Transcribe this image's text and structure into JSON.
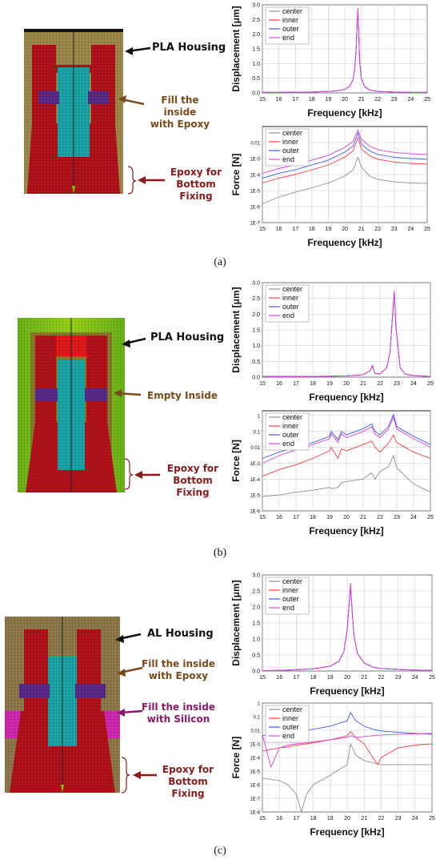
{
  "colors": {
    "center": "#909090",
    "inner": "#ff3b3b",
    "outer": "#3b5bff",
    "end": "#e040e0",
    "pla_arrow": "#111111",
    "epoxy_fill_text": "#7a4a1a",
    "silicon_text": "#8a1a6a",
    "bottom_text": "#8b1a1a",
    "model_red": "#b3121a",
    "model_cyan": "#1aa6a6",
    "model_purple": "#5a2a8a",
    "pla_yellow": "#a48a3a",
    "pla_green": "#7ac81a"
  },
  "panels": [
    {
      "label": "(a)",
      "housing_label": "PLA Housing",
      "fill_label": [
        "Fill the inside",
        "with Epoxy"
      ],
      "bottom_label": [
        "Epoxy for",
        "Bottom Fixing"
      ]
    },
    {
      "label": "(b)",
      "housing_label": "PLA Housing",
      "fill_label": [
        "Empty Inside"
      ],
      "bottom_label": [
        "Epoxy for",
        "Bottom Fixing"
      ]
    },
    {
      "label": "(c)",
      "housing_label": "AL Housing",
      "fill_label": [
        "Fill the inside",
        "with Epoxy"
      ],
      "silicon_label": [
        "Fill the inside",
        "with Silicon"
      ],
      "bottom_label": [
        "Epoxy for",
        "Bottom Fixing"
      ]
    }
  ],
  "chart_data": [
    {
      "type": "line",
      "panel": "a",
      "scale": "linear",
      "xlabel": "Frequency [kHz]",
      "ylabel": "Displacement [μm]",
      "xlim": [
        15,
        25
      ],
      "ylim": [
        0,
        3.0
      ],
      "xticks": [
        "15",
        "16",
        "17",
        "18",
        "19",
        "20",
        "21",
        "22",
        "23",
        "24",
        "25"
      ],
      "yticks": [
        "0.0",
        "0.5",
        "1.0",
        "1.5",
        "2.0",
        "2.5",
        "3.0"
      ],
      "grid": true,
      "legend": "top-left",
      "legend_entries": [
        "center",
        "inner",
        "outer",
        "end"
      ],
      "x": [
        15,
        16,
        17,
        18,
        19,
        19.5,
        20,
        20.3,
        20.5,
        20.6,
        20.7,
        20.75,
        20.8,
        20.85,
        20.9,
        21,
        21.2,
        21.5,
        22,
        23,
        24,
        25
      ],
      "series": [
        {
          "name": "center",
          "values": [
            0.02,
            0.02,
            0.03,
            0.03,
            0.05,
            0.07,
            0.12,
            0.22,
            0.45,
            0.8,
            1.6,
            2.4,
            2.8,
            2.0,
            1.1,
            0.5,
            0.22,
            0.1,
            0.05,
            0.03,
            0.02,
            0.02
          ]
        },
        {
          "name": "inner",
          "values": [
            0.02,
            0.02,
            0.03,
            0.03,
            0.05,
            0.07,
            0.12,
            0.22,
            0.45,
            0.8,
            1.6,
            2.4,
            2.75,
            2.0,
            1.1,
            0.5,
            0.22,
            0.1,
            0.05,
            0.03,
            0.02,
            0.02
          ]
        },
        {
          "name": "outer",
          "values": [
            0.02,
            0.02,
            0.03,
            0.03,
            0.05,
            0.07,
            0.12,
            0.22,
            0.45,
            0.8,
            1.6,
            2.4,
            2.7,
            2.0,
            1.1,
            0.5,
            0.22,
            0.1,
            0.05,
            0.03,
            0.02,
            0.02
          ]
        },
        {
          "name": "end",
          "values": [
            0.02,
            0.02,
            0.03,
            0.03,
            0.05,
            0.07,
            0.12,
            0.22,
            0.45,
            0.8,
            1.6,
            2.4,
            2.9,
            2.0,
            1.1,
            0.5,
            0.22,
            0.1,
            0.05,
            0.03,
            0.02,
            0.02
          ]
        }
      ]
    },
    {
      "type": "line",
      "panel": "a",
      "scale": "log",
      "xlabel": "Frequency [kHz]",
      "ylabel": "Force [N]",
      "xlim": [
        15,
        25
      ],
      "ylim": [
        1e-07,
        0.1
      ],
      "xticks": [
        "15",
        "16",
        "17",
        "18",
        "19",
        "20",
        "21",
        "22",
        "23",
        "24",
        "25"
      ],
      "yticks": [
        "1E-7",
        "1E-6",
        "1E-5",
        "1E-4",
        "1E-3",
        "0.01"
      ],
      "grid": true,
      "legend": "top-left",
      "legend_entries": [
        "center",
        "inner",
        "outer",
        "end"
      ],
      "x": [
        15,
        16,
        17,
        18,
        19,
        20,
        20.5,
        20.8,
        21,
        21.5,
        22,
        23,
        24,
        25
      ],
      "series": [
        {
          "name": "center",
          "values": [
            1.5e-06,
            4e-06,
            8e-06,
            1.5e-05,
            3e-05,
            8e-05,
            0.0002,
            0.0012,
            0.0003,
            8e-05,
            5e-05,
            3.5e-05,
            3e-05,
            2.8e-05
          ]
        },
        {
          "name": "inner",
          "values": [
            3e-05,
            6e-05,
            0.0001,
            0.0002,
            0.0004,
            0.0012,
            0.003,
            0.02,
            0.004,
            0.0015,
            0.0009,
            0.0006,
            0.0005,
            0.00045
          ]
        },
        {
          "name": "outer",
          "values": [
            6e-05,
            0.00012,
            0.0002,
            0.0004,
            0.0008,
            0.0025,
            0.006,
            0.04,
            0.008,
            0.003,
            0.0018,
            0.0012,
            0.001,
            0.0009
          ]
        },
        {
          "name": "end",
          "values": [
            0.00012,
            0.00024,
            0.0004,
            0.0008,
            0.0016,
            0.005,
            0.012,
            0.06,
            0.016,
            0.006,
            0.0036,
            0.0024,
            0.002,
            0.0018
          ]
        }
      ]
    },
    {
      "type": "line",
      "panel": "b",
      "scale": "linear",
      "xlabel": "Frequency [kHz]",
      "ylabel": "Displacement [μm]",
      "xlim": [
        15,
        25
      ],
      "ylim": [
        0,
        3.0
      ],
      "xticks": [
        "15",
        "16",
        "17",
        "18",
        "19",
        "20",
        "21",
        "22",
        "23",
        "24",
        "25"
      ],
      "yticks": [
        "0.0",
        "0.5",
        "1.0",
        "1.5",
        "2.0",
        "2.5",
        "3.0"
      ],
      "grid": true,
      "legend": "top-left",
      "legend_entries": [
        "center",
        "inner",
        "outer",
        "end"
      ],
      "x": [
        15,
        17,
        19,
        20,
        21,
        21.4,
        21.55,
        21.7,
        22,
        22.4,
        22.6,
        22.75,
        22.85,
        22.95,
        23.2,
        23.5,
        24,
        25
      ],
      "series": [
        {
          "name": "center",
          "values": [
            0.02,
            0.02,
            0.03,
            0.04,
            0.08,
            0.2,
            0.35,
            0.12,
            0.1,
            0.3,
            0.8,
            2.0,
            2.7,
            1.6,
            0.3,
            0.1,
            0.05,
            0.02
          ]
        },
        {
          "name": "inner",
          "values": [
            0.02,
            0.02,
            0.03,
            0.04,
            0.08,
            0.2,
            0.35,
            0.12,
            0.1,
            0.3,
            0.8,
            2.0,
            2.7,
            1.6,
            0.3,
            0.1,
            0.05,
            0.02
          ]
        },
        {
          "name": "outer",
          "values": [
            0.02,
            0.02,
            0.03,
            0.04,
            0.08,
            0.2,
            0.35,
            0.12,
            0.1,
            0.3,
            0.8,
            2.0,
            2.7,
            1.6,
            0.3,
            0.1,
            0.05,
            0.02
          ]
        },
        {
          "name": "end",
          "values": [
            0.02,
            0.02,
            0.03,
            0.04,
            0.08,
            0.2,
            0.38,
            0.12,
            0.1,
            0.3,
            0.8,
            2.0,
            2.75,
            1.6,
            0.3,
            0.1,
            0.05,
            0.02
          ]
        }
      ]
    },
    {
      "type": "line",
      "panel": "b",
      "scale": "log",
      "xlabel": "Frequency [kHz]",
      "ylabel": "Force [N]",
      "xlim": [
        15,
        25
      ],
      "ylim": [
        1e-06,
        2
      ],
      "xticks": [
        "15",
        "16",
        "17",
        "18",
        "19",
        "20",
        "21",
        "22",
        "23",
        "24",
        "25"
      ],
      "yticks": [
        "1E-6",
        "1E-5",
        "1E-4",
        "1E-3",
        "0.01",
        "0.1",
        "1"
      ],
      "grid": true,
      "legend": "top-left",
      "legend_entries": [
        "center",
        "inner",
        "outer",
        "end"
      ],
      "x": [
        15,
        16,
        17,
        18,
        19,
        19.1,
        19.5,
        19.7,
        20,
        21,
        21.5,
        21.7,
        22,
        22.5,
        22.8,
        23,
        24,
        25
      ],
      "series": [
        {
          "name": "center",
          "values": [
            8e-06,
            1e-05,
            1.5e-05,
            2e-05,
            3e-05,
            2.5e-05,
            3e-05,
            6e-05,
            7e-05,
            0.0001,
            0.00025,
            0.0001,
            0.0003,
            0.0006,
            0.003,
            0.0005,
            5e-05,
            1.5e-05
          ]
        },
        {
          "name": "inner",
          "values": [
            0.00015,
            0.0004,
            0.0008,
            0.002,
            0.006,
            0.01,
            0.002,
            0.008,
            0.006,
            0.015,
            0.025,
            0.01,
            0.005,
            0.018,
            0.06,
            0.02,
            0.005,
            0.002
          ]
        },
        {
          "name": "outer",
          "values": [
            0.002,
            0.005,
            0.01,
            0.02,
            0.05,
            0.1,
            0.03,
            0.1,
            0.06,
            0.15,
            0.3,
            0.1,
            0.06,
            0.2,
            1.2,
            0.2,
            0.05,
            0.015
          ]
        },
        {
          "name": "end",
          "values": [
            0.001,
            0.003,
            0.007,
            0.015,
            0.035,
            0.07,
            0.02,
            0.07,
            0.04,
            0.1,
            0.2,
            0.07,
            0.04,
            0.14,
            0.8,
            0.14,
            0.035,
            0.01
          ]
        }
      ]
    },
    {
      "type": "line",
      "panel": "c",
      "scale": "linear",
      "xlabel": "Frequency [kHz]",
      "ylabel": "Displacement [μm]",
      "xlim": [
        15,
        25
      ],
      "ylim": [
        0,
        3.0
      ],
      "xticks": [
        "15",
        "16",
        "17",
        "18",
        "19",
        "20",
        "21",
        "22",
        "23",
        "24",
        "25"
      ],
      "yticks": [
        "0.0",
        "0.5",
        "1.0",
        "1.5",
        "2.0",
        "2.5",
        "3.0"
      ],
      "grid": true,
      "legend": "top-left",
      "legend_entries": [
        "center",
        "inner",
        "outer",
        "end"
      ],
      "x": [
        15,
        16,
        17,
        18,
        19,
        19.5,
        19.8,
        20,
        20.1,
        20.2,
        20.3,
        20.4,
        20.6,
        21,
        21.5,
        22,
        23,
        24,
        25
      ],
      "series": [
        {
          "name": "center",
          "values": [
            0.01,
            0.02,
            0.04,
            0.07,
            0.15,
            0.3,
            0.6,
            1.3,
            2.0,
            2.65,
            1.8,
            1.1,
            0.55,
            0.25,
            0.12,
            0.08,
            0.05,
            0.03,
            0.02
          ]
        },
        {
          "name": "inner",
          "values": [
            0.01,
            0.02,
            0.04,
            0.07,
            0.15,
            0.3,
            0.6,
            1.3,
            2.0,
            2.75,
            1.8,
            1.1,
            0.55,
            0.25,
            0.12,
            0.08,
            0.05,
            0.03,
            0.02
          ]
        },
        {
          "name": "outer",
          "values": [
            0.01,
            0.02,
            0.04,
            0.07,
            0.15,
            0.3,
            0.6,
            1.3,
            2.0,
            2.6,
            1.8,
            1.1,
            0.55,
            0.25,
            0.12,
            0.08,
            0.05,
            0.03,
            0.02
          ]
        },
        {
          "name": "end",
          "values": [
            0.01,
            0.02,
            0.04,
            0.07,
            0.15,
            0.3,
            0.6,
            1.3,
            2.0,
            2.7,
            1.8,
            1.1,
            0.55,
            0.25,
            0.12,
            0.08,
            0.05,
            0.03,
            0.02
          ]
        }
      ]
    },
    {
      "type": "line",
      "panel": "c",
      "scale": "log",
      "xlabel": "Frequency [kHz]",
      "ylabel": "Force [N]",
      "xlim": [
        15,
        25
      ],
      "ylim": [
        1e-08,
        1
      ],
      "xticks": [
        "15",
        "16",
        "17",
        "18",
        "19",
        "20",
        "21",
        "22",
        "23",
        "24",
        "25"
      ],
      "yticks": [
        "1E-8",
        "1E-7",
        "1E-6",
        "1E-5",
        "1E-4",
        "1E-3",
        "0.01",
        "0.1",
        "1"
      ],
      "grid": true,
      "legend": "top-left",
      "legend_entries": [
        "center",
        "inner",
        "outer",
        "end"
      ],
      "x": [
        15,
        15.5,
        16,
        16.5,
        17,
        17.3,
        17.6,
        18,
        19,
        20,
        20.2,
        20.5,
        21,
        21.5,
        21.8,
        22,
        23,
        24,
        25
      ],
      "series": [
        {
          "name": "center",
          "values": [
            3e-06,
            2.5e-06,
            2e-06,
            1e-06,
            2e-07,
            1e-08,
            2e-07,
            1e-06,
            5e-06,
            3e-05,
            0.001,
            0.00015,
            6e-05,
            4e-05,
            3.5e-05,
            3e-05,
            3e-05,
            3e-05,
            3e-05
          ]
        },
        {
          "name": "inner",
          "values": [
            0.0003,
            0.0004,
            0.0005,
            0.0006,
            0.0008,
            0.0009,
            0.001,
            0.0012,
            0.002,
            0.004,
            0.008,
            0.003,
            0.001,
            0.0001,
            3e-05,
            0.0001,
            0.0005,
            0.0008,
            0.001
          ]
        },
        {
          "name": "outer",
          "values": [
            0.004,
            0.005,
            0.006,
            0.007,
            0.008,
            0.009,
            0.01,
            0.012,
            0.02,
            0.05,
            0.2,
            0.05,
            0.02,
            0.012,
            0.01,
            0.009,
            0.007,
            0.006,
            0.005
          ]
        },
        {
          "name": "end",
          "values": [
            0.005,
            2e-05,
            0.0005,
            0.0008,
            0.001,
            0.0011,
            0.0012,
            0.0014,
            0.002,
            0.003,
            0.004,
            0.003,
            0.0035,
            0.004,
            0.0043,
            0.0045,
            0.005,
            0.0055,
            0.006
          ]
        }
      ]
    }
  ]
}
